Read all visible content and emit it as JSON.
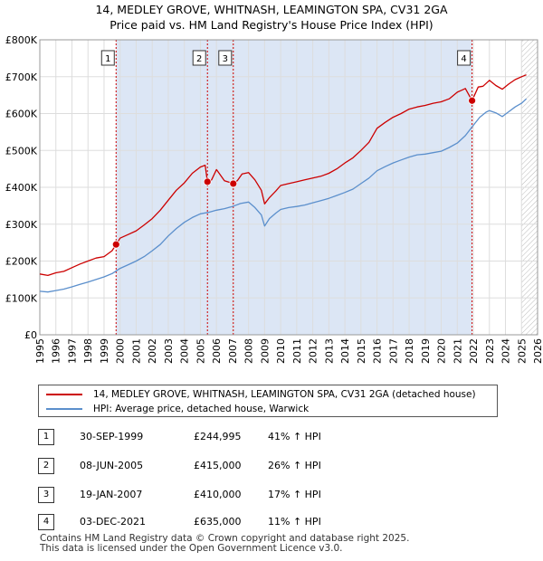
{
  "title_line1": "14, MEDLEY GROVE, WHITNASH, LEAMINGTON SPA, CV31 2GA",
  "title_line2": "Price paid vs. HM Land Registry's House Price Index (HPI)",
  "colors": {
    "property": "#cc0000",
    "hpi": "#5b8fcc",
    "shade": "#dce6f5",
    "hatch": "#bbbbbb",
    "vline": "#cc0000"
  },
  "chart_data": {
    "type": "line",
    "title": "Price paid vs. HM Land Registry's House Price Index (HPI)",
    "xlabel": "",
    "ylabel": "",
    "xlim": [
      1995,
      2026
    ],
    "ylim": [
      0,
      800000
    ],
    "y_ticks": [
      0,
      100000,
      200000,
      300000,
      400000,
      500000,
      600000,
      700000,
      800000
    ],
    "y_tick_labels": [
      "£0",
      "£100K",
      "£200K",
      "£300K",
      "£400K",
      "£500K",
      "£600K",
      "£700K",
      "£800K"
    ],
    "x_ticks": [
      1995,
      1996,
      1997,
      1998,
      1999,
      2000,
      2001,
      2002,
      2003,
      2004,
      2005,
      2006,
      2007,
      2008,
      2009,
      2010,
      2011,
      2012,
      2013,
      2014,
      2015,
      2016,
      2017,
      2018,
      2019,
      2020,
      2021,
      2022,
      2023,
      2024,
      2025,
      2026
    ],
    "x_tick_labels": [
      "1995",
      "1996",
      "1997",
      "1998",
      "1999",
      "2000",
      "2001",
      "2002",
      "2003",
      "2004",
      "2005",
      "2006",
      "2007",
      "2008",
      "2009",
      "2010",
      "2011",
      "2012",
      "2013",
      "2014",
      "2015",
      "2016",
      "2017",
      "2018",
      "2019",
      "2020",
      "2021",
      "2022",
      "2023",
      "2024",
      "2025",
      "2026"
    ],
    "shaded_range": [
      1999.75,
      2021.92
    ],
    "hatched_range": [
      2025.0,
      2026.0
    ],
    "series": [
      {
        "name": "14, MEDLEY GROVE, WHITNASH, LEAMINGTON SPA, CV31 2GA (detached house)",
        "color": "#cc0000",
        "x": [
          1995.0,
          1995.5,
          1996.0,
          1996.5,
          1997.0,
          1997.5,
          1998.0,
          1998.5,
          1999.0,
          1999.5,
          1999.75,
          2000.0,
          2000.5,
          2001.0,
          2001.5,
          2002.0,
          2002.5,
          2003.0,
          2003.5,
          2004.0,
          2004.5,
          2005.0,
          2005.3,
          2005.44,
          2005.7,
          2006.0,
          2006.5,
          2007.05,
          2007.3,
          2007.6,
          2008.0,
          2008.4,
          2008.8,
          2009.0,
          2009.3,
          2009.7,
          2010.0,
          2010.5,
          2011.0,
          2011.5,
          2012.0,
          2012.5,
          2013.0,
          2013.5,
          2014.0,
          2014.5,
          2015.0,
          2015.5,
          2016.0,
          2016.5,
          2017.0,
          2017.5,
          2018.0,
          2018.5,
          2019.0,
          2019.5,
          2020.0,
          2020.5,
          2021.0,
          2021.5,
          2021.92,
          2022.3,
          2022.6,
          2023.0,
          2023.4,
          2023.8,
          2024.2,
          2024.6,
          2025.0,
          2025.3
        ],
        "y": [
          165000,
          161000,
          168000,
          172000,
          182000,
          192000,
          200000,
          208000,
          212000,
          228000,
          244995,
          262000,
          272000,
          282000,
          298000,
          315000,
          338000,
          365000,
          392000,
          412000,
          438000,
          455000,
          460000,
          415000,
          420000,
          448000,
          418000,
          410000,
          418000,
          436000,
          440000,
          420000,
          392000,
          355000,
          372000,
          390000,
          405000,
          410000,
          415000,
          420000,
          425000,
          430000,
          438000,
          450000,
          466000,
          480000,
          500000,
          522000,
          560000,
          576000,
          590000,
          600000,
          612000,
          618000,
          622000,
          628000,
          632000,
          640000,
          658000,
          668000,
          635000,
          672000,
          674000,
          690000,
          676000,
          666000,
          680000,
          692000,
          700000,
          705000
        ]
      },
      {
        "name": "HPI: Average price, detached house, Warwick",
        "color": "#5b8fcc",
        "x": [
          1995.0,
          1995.5,
          1996.0,
          1996.5,
          1997.0,
          1997.5,
          1998.0,
          1998.5,
          1999.0,
          1999.5,
          2000.0,
          2000.5,
          2001.0,
          2001.5,
          2002.0,
          2002.5,
          2003.0,
          2003.5,
          2004.0,
          2004.5,
          2005.0,
          2005.5,
          2006.0,
          2006.5,
          2007.0,
          2007.5,
          2008.0,
          2008.4,
          2008.8,
          2009.0,
          2009.3,
          2009.7,
          2010.0,
          2010.5,
          2011.0,
          2011.5,
          2012.0,
          2012.5,
          2013.0,
          2013.5,
          2014.0,
          2014.5,
          2015.0,
          2015.5,
          2016.0,
          2016.5,
          2017.0,
          2017.5,
          2018.0,
          2018.5,
          2019.0,
          2019.5,
          2020.0,
          2020.5,
          2021.0,
          2021.5,
          2022.0,
          2022.4,
          2022.8,
          2023.0,
          2023.4,
          2023.8,
          2024.2,
          2024.6,
          2025.0,
          2025.3
        ],
        "y": [
          118000,
          116000,
          120000,
          124000,
          130000,
          137000,
          143000,
          150000,
          157000,
          166000,
          180000,
          190000,
          200000,
          212000,
          228000,
          245000,
          268000,
          288000,
          305000,
          318000,
          328000,
          332000,
          338000,
          342000,
          348000,
          356000,
          360000,
          345000,
          325000,
          295000,
          315000,
          330000,
          340000,
          345000,
          348000,
          352000,
          358000,
          364000,
          370000,
          378000,
          386000,
          395000,
          410000,
          425000,
          445000,
          456000,
          466000,
          474000,
          482000,
          488000,
          490000,
          494000,
          498000,
          508000,
          520000,
          540000,
          568000,
          590000,
          604000,
          608000,
          602000,
          592000,
          605000,
          618000,
          628000,
          640000
        ]
      }
    ],
    "sales": [
      {
        "label": "1",
        "x": 1999.75,
        "y": 244995
      },
      {
        "label": "2",
        "x": 2005.44,
        "y": 415000
      },
      {
        "label": "3",
        "x": 2007.05,
        "y": 410000
      },
      {
        "label": "4",
        "x": 2021.92,
        "y": 635000
      }
    ]
  },
  "legend": {
    "property_label": "14, MEDLEY GROVE, WHITNASH, LEAMINGTON SPA, CV31 2GA (detached house)",
    "hpi_label": "HPI: Average price, detached house, Warwick"
  },
  "table": [
    {
      "num": "1",
      "date": "30-SEP-1999",
      "price": "£244,995",
      "hpi": "41% ↑ HPI"
    },
    {
      "num": "2",
      "date": "08-JUN-2005",
      "price": "£415,000",
      "hpi": "26% ↑ HPI"
    },
    {
      "num": "3",
      "date": "19-JAN-2007",
      "price": "£410,000",
      "hpi": "17% ↑ HPI"
    },
    {
      "num": "4",
      "date": "03-DEC-2021",
      "price": "£635,000",
      "hpi": "11% ↑ HPI"
    }
  ],
  "footer": {
    "line1": "Contains HM Land Registry data © Crown copyright and database right 2025.",
    "line2": "This data is licensed under the Open Government Licence v3.0."
  }
}
